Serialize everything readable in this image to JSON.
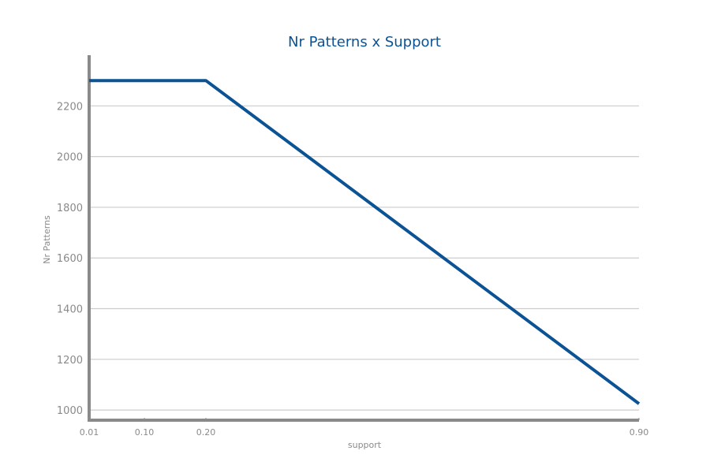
{
  "chart_data": {
    "type": "line",
    "title": "Nr Patterns x Support",
    "xlabel": "support",
    "ylabel": "Nr Patterns",
    "x": [
      0.01,
      0.1,
      0.2,
      0.9
    ],
    "x_tick_labels": [
      "0.01",
      "0.10",
      "0.20",
      "0.90"
    ],
    "series": [
      {
        "name": "Nr Patterns",
        "values": [
          2300,
          2300,
          2300,
          1025
        ]
      }
    ],
    "y_ticks": [
      1000,
      1200,
      1400,
      1600,
      1800,
      2000,
      2200
    ],
    "ylim": [
      960,
      2400
    ],
    "grid": true
  },
  "colors": {
    "line": "#0b5394",
    "title": "#0b5394",
    "axis": "#8a8a8a",
    "grid": "#cccccc",
    "tick_text": "#8a8a8a"
  }
}
